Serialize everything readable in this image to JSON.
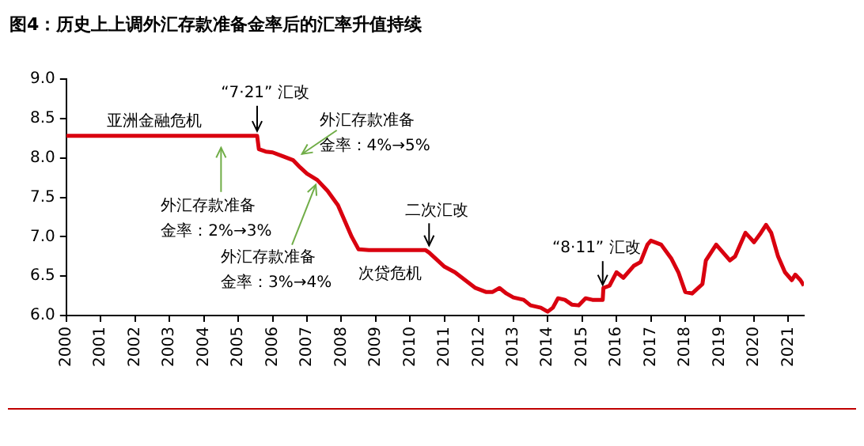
{
  "chart_data": {
    "type": "line",
    "title": "图4：历史上上调外汇存款准备金率后的汇率升值持续",
    "x": [
      2000,
      2005.55,
      2005.6,
      2005.8,
      2006.0,
      2006.3,
      2006.6,
      2006.8,
      2007.0,
      2007.3,
      2007.6,
      2007.9,
      2008.1,
      2008.3,
      2008.5,
      2008.8,
      2009.5,
      2010.45,
      2010.55,
      2010.8,
      2011.0,
      2011.3,
      2011.6,
      2011.9,
      2012.2,
      2012.4,
      2012.6,
      2012.8,
      2013.0,
      2013.3,
      2013.5,
      2013.8,
      2014.0,
      2014.15,
      2014.3,
      2014.5,
      2014.7,
      2014.9,
      2015.1,
      2015.3,
      2015.6,
      2015.62,
      2015.8,
      2016.0,
      2016.2,
      2016.5,
      2016.7,
      2016.9,
      2017.0,
      2017.3,
      2017.6,
      2017.8,
      2018.0,
      2018.2,
      2018.5,
      2018.6,
      2018.9,
      2019.1,
      2019.3,
      2019.45,
      2019.6,
      2019.75,
      2019.9,
      2020.0,
      2020.2,
      2020.35,
      2020.5,
      2020.7,
      2020.9,
      2021.1,
      2021.2,
      2021.35,
      2021.45
    ],
    "series": [
      {
        "color": "#d9000f",
        "values": [
          8.28,
          8.28,
          8.11,
          8.08,
          8.07,
          8.02,
          7.97,
          7.88,
          7.8,
          7.72,
          7.58,
          7.4,
          7.2,
          7.0,
          6.84,
          6.83,
          6.83,
          6.83,
          6.8,
          6.7,
          6.62,
          6.55,
          6.45,
          6.35,
          6.3,
          6.3,
          6.35,
          6.28,
          6.23,
          6.2,
          6.13,
          6.1,
          6.05,
          6.1,
          6.22,
          6.2,
          6.14,
          6.13,
          6.22,
          6.2,
          6.2,
          6.35,
          6.38,
          6.55,
          6.48,
          6.63,
          6.68,
          6.9,
          6.95,
          6.9,
          6.72,
          6.55,
          6.3,
          6.28,
          6.4,
          6.7,
          6.9,
          6.8,
          6.7,
          6.75,
          6.9,
          7.05,
          6.98,
          6.93,
          7.05,
          7.15,
          7.05,
          6.75,
          6.55,
          6.45,
          6.52,
          6.45,
          6.38
        ]
      }
    ],
    "xlim": [
      2000,
      2021.45
    ],
    "xticks": [
      2000,
      2001,
      2002,
      2003,
      2004,
      2005,
      2006,
      2007,
      2008,
      2009,
      2010,
      2011,
      2012,
      2013,
      2014,
      2015,
      2016,
      2017,
      2018,
      2019,
      2020,
      2021
    ],
    "ylim": [
      6,
      9
    ],
    "yticks": [
      {
        "value": 6,
        "label": "6.0"
      },
      {
        "value": 6.5,
        "label": "6.5"
      },
      {
        "value": 7,
        "label": "7.0"
      },
      {
        "value": 7.5,
        "label": "7.5"
      },
      {
        "value": 8,
        "label": "8.0"
      },
      {
        "value": 8.5,
        "label": "8.5"
      },
      {
        "value": 9,
        "label": "9.0"
      }
    ],
    "grid": false,
    "legend": false,
    "marker": "none",
    "line_style": "solid",
    "annotations": [
      {
        "text": "亚洲金融危机",
        "x": 2002.55,
        "y": 8.28
      },
      {
        "text": "“7·21” 汇改",
        "x": 2005.55,
        "y": 8.28
      },
      {
        "text": "外汇存款准备金率：2%→3%",
        "x": 2004.5,
        "y": 8.19
      },
      {
        "text": "外汇存款准备金率：4%→5%",
        "x": 2006.67,
        "y": 8.01
      },
      {
        "text": "外汇存款准备金率：3%→4%",
        "x": 2007.3,
        "y": 7.72
      },
      {
        "text": "次贷危机",
        "x": 2009.5,
        "y": 6.83
      },
      {
        "text": "二次汇改",
        "x": 2010.55,
        "y": 6.83
      },
      {
        "text": "“8·11” 汇改",
        "x": 2015.6,
        "y": 6.35
      }
    ]
  }
}
